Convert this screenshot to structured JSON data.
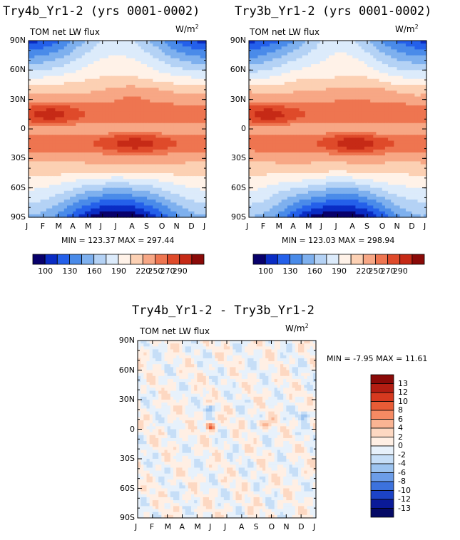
{
  "panels": [
    {
      "title": "Try4b_Yr1-2 (yrs 0001-0002)",
      "variable": "TOM net LW flux",
      "units_base": "W/m",
      "units_exp": "2",
      "minmax": "MIN = 123.37 MAX = 297.44"
    },
    {
      "title": "Try3b_Yr1-2 (yrs 0001-0002)",
      "variable": "TOM net LW flux",
      "units_base": "W/m",
      "units_exp": "2",
      "minmax": "MIN = 123.03 MAX = 298.94"
    },
    {
      "title": "Try4b_Yr1-2 - Try3b_Yr1-2",
      "variable": "TOM net LW flux",
      "units_base": "W/m",
      "units_exp": "2",
      "minmax": "MIN =   -7.95 MAX =   11.61"
    }
  ],
  "chart_data": [
    {
      "type": "heatmap",
      "title": "Try4b_Yr1-2 (yrs 0001-0002)",
      "variable": "TOM net LW flux",
      "units": "W/m^2",
      "x_ticks": [
        "J",
        "F",
        "M",
        "A",
        "M",
        "J",
        "J",
        "A",
        "S",
        "O",
        "N",
        "D",
        "J"
      ],
      "y_ticks": [
        "90N",
        "60N",
        "30N",
        "0",
        "30S",
        "60S",
        "90S"
      ],
      "ylim": [
        -90,
        90
      ],
      "min": 123.37,
      "max": 297.44,
      "colorbar_labels": [
        "100",
        "130",
        "160",
        "190",
        "220",
        "250",
        "270",
        "290"
      ]
    },
    {
      "type": "heatmap",
      "title": "Try3b_Yr1-2 (yrs 0001-0002)",
      "variable": "TOM net LW flux",
      "units": "W/m^2",
      "x_ticks": [
        "J",
        "F",
        "M",
        "A",
        "M",
        "J",
        "J",
        "A",
        "S",
        "O",
        "N",
        "D",
        "J"
      ],
      "y_ticks": [
        "90N",
        "60N",
        "30N",
        "0",
        "30S",
        "60S",
        "90S"
      ],
      "ylim": [
        -90,
        90
      ],
      "min": 123.03,
      "max": 298.94,
      "colorbar_labels": [
        "100",
        "130",
        "160",
        "190",
        "220",
        "250",
        "270",
        "290"
      ]
    },
    {
      "type": "heatmap",
      "title": "Try4b_Yr1-2 - Try3b_Yr1-2",
      "variable": "TOM net LW flux",
      "units": "W/m^2",
      "x_ticks": [
        "J",
        "F",
        "M",
        "A",
        "M",
        "J",
        "J",
        "A",
        "S",
        "O",
        "N",
        "D",
        "J"
      ],
      "y_ticks": [
        "90N",
        "60N",
        "30N",
        "0",
        "30S",
        "60S",
        "90S"
      ],
      "ylim": [
        -90,
        90
      ],
      "min": -7.95,
      "max": 11.61,
      "colorbar_labels": [
        "13",
        "12",
        "10",
        "8",
        "6",
        "4",
        "2",
        "0",
        "-2",
        "-4",
        "-6",
        "-8",
        "-10",
        "-12",
        "-13"
      ]
    }
  ],
  "colors": {
    "abs_levels": [
      "#08006b",
      "#0a2cc4",
      "#2460ea",
      "#4a8be9",
      "#7eb0ee",
      "#b4d2f5",
      "#dcebfb",
      "#fff2e8",
      "#fcd0b3",
      "#f7a785",
      "#ee7550",
      "#df4a2a",
      "#c62a16",
      "#8a0a08"
    ],
    "diff_levels": [
      "#8a0a08",
      "#b31d12",
      "#d6391f",
      "#e95c36",
      "#f58a63",
      "#fab493",
      "#fdd8c2",
      "#ffefe4",
      "#e7f1fb",
      "#c6def7",
      "#9dc4f0",
      "#6c9de8",
      "#3c72dd",
      "#1c43c7",
      "#0a1a98",
      "#050a66"
    ]
  }
}
